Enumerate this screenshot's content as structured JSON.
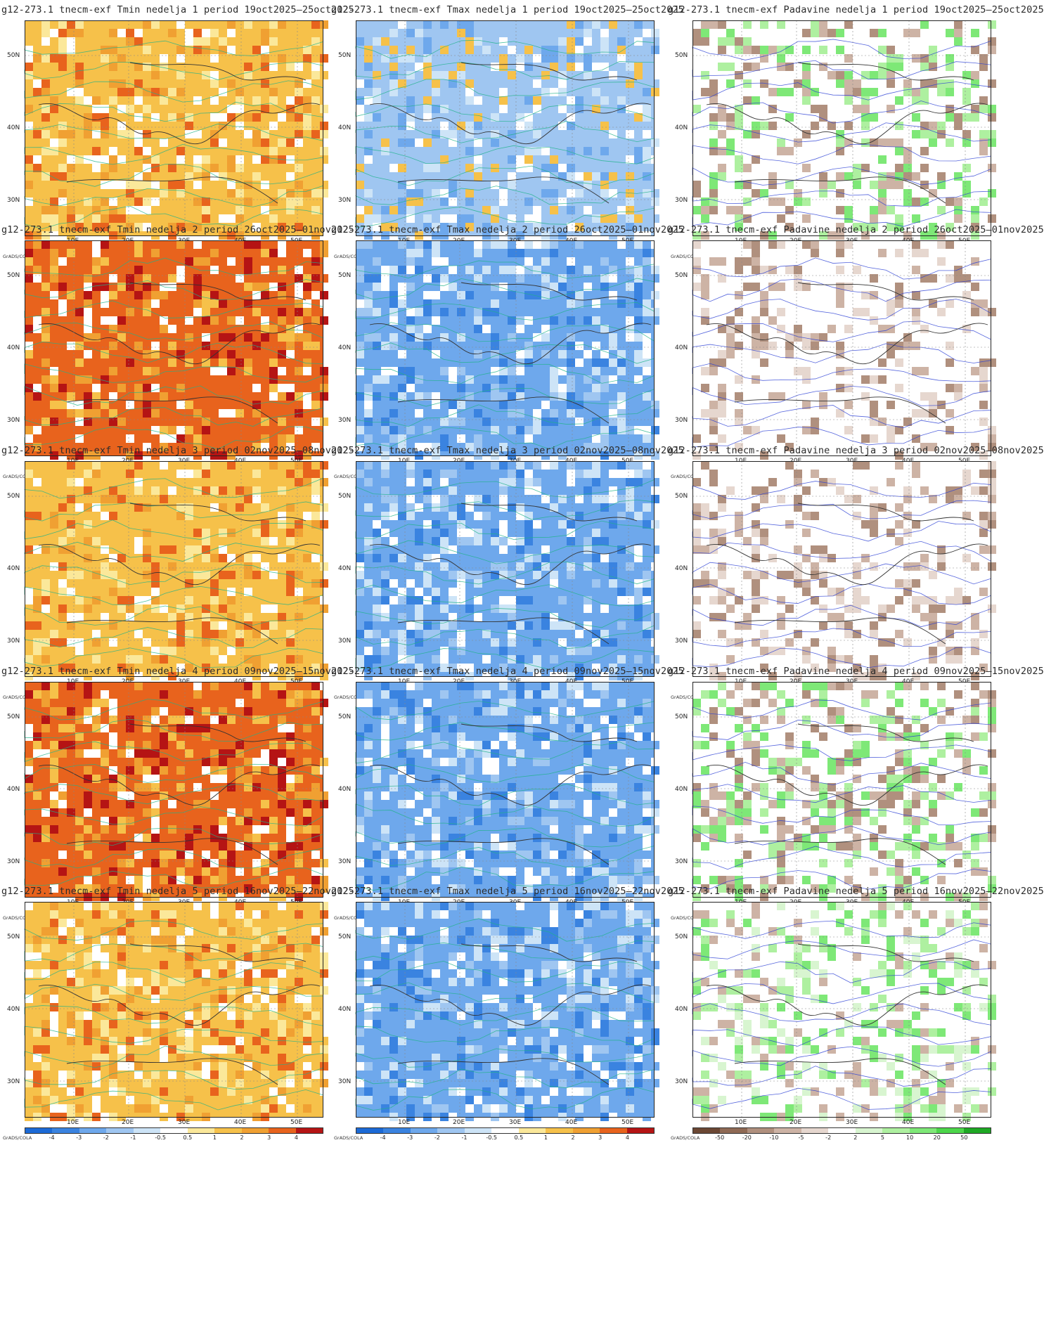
{
  "rows": [
    {
      "period": "19oct2025–25oct2025",
      "titles": [
        "g12-273.1 tnecm-exf Tmin nedelja 1 period 19oct2025–25oct2025",
        "g12-273.1 tnecm-exf Tmax nedelja 1 period 19oct2025–25oct2025",
        "g12-273.1 tnecm-exf Padavine nedelja 1 period 19oct2025–25oct2025"
      ]
    },
    {
      "period": "26oct2025–01nov2025",
      "titles": [
        "g12-273.1 tnecm-exf Tmin nedelja 2 period 26oct2025–01nov2025",
        "g12-273.1 tnecm-exf Tmax nedelja 2 period 26oct2025–01nov2025",
        "g12-273.1 tnecm-exf Padavine nedelja 2 period 26oct2025–01nov2025"
      ]
    },
    {
      "period": "02nov2025–08nov2025",
      "titles": [
        "g12-273.1 tnecm-exf Tmin nedelja 3 period 02nov2025–08nov2025",
        "g12-273.1 tnecm-exf Tmax nedelja 3 period 02nov2025–08nov2025",
        "g12-273.1 tnecm-exf Padavine nedelja 3 period 02nov2025–08nov2025"
      ]
    },
    {
      "period": "09nov2025–15nov2025",
      "titles": [
        "g12-273.1 tnecm-exf Tmin nedelja 4 period 09nov2025–15nov2025",
        "g12-273.1 tnecm-exf Tmax nedelja 4 period 09nov2025–15nov2025",
        "g12-273.1 tnecm-exf Padavine nedelja 4 period 09nov2025–15nov2025"
      ]
    },
    {
      "period": "16nov2025–22nov2025",
      "titles": [
        "g12-273.1 tnecm-exf Tmin nedelja 5 period 16nov2025–22nov2025",
        "g12-273.1 tnecm-exf Tmax nedelja 5 period 16nov2025–22nov2025",
        "g12-273.1 tnecm-exf Padavine nedelja 5 period 16nov2025–22nov2025"
      ]
    }
  ],
  "latitude_labels": [
    "50N",
    "40N",
    "30N"
  ],
  "longitude_labels": [
    "10E",
    "20E",
    "30E",
    "40E",
    "50E"
  ],
  "credit": "GrADS/COLA",
  "temp_scale": {
    "ticks": [
      "-4",
      "-3",
      "-2",
      "-1",
      "-0.5",
      "0.5",
      "1",
      "2",
      "3",
      "4"
    ],
    "colors": [
      "#1c6ad6",
      "#3a83e0",
      "#6ea8ec",
      "#9fc6f1",
      "#cde4f7",
      "#ffffff",
      "#fbe89a",
      "#f6c14a",
      "#f0a032",
      "#e8631d",
      "#b51414"
    ]
  },
  "precip_scale": {
    "ticks": [
      "-50",
      "-20",
      "-10",
      "-5",
      "-2",
      "2",
      "5",
      "10",
      "20",
      "50"
    ],
    "colors": [
      "#6b4733",
      "#8f6a55",
      "#b0907e",
      "#cdb3a5",
      "#e6d7cf",
      "#ffffff",
      "#d8f5d0",
      "#aef0a0",
      "#7ee877",
      "#4cd64a",
      "#1ea824"
    ]
  },
  "map_fill": {
    "tmin": [
      "orange",
      "red",
      "orange",
      "red",
      "orange"
    ],
    "tmax": [
      "lightblue",
      "blue",
      "blue",
      "blue",
      "blue"
    ],
    "precip": [
      "mixed",
      "brown",
      "brown",
      "mixed",
      "green"
    ]
  }
}
